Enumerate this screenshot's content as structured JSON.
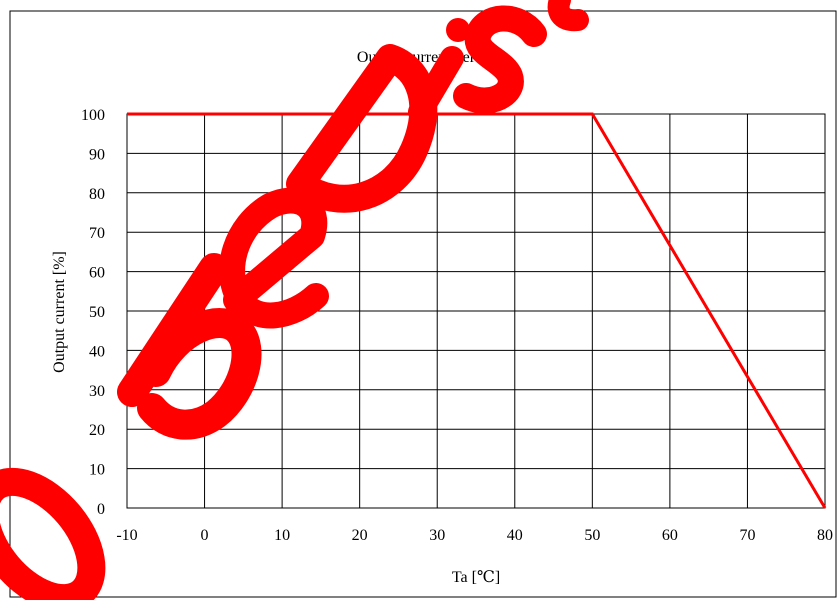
{
  "chart_data": {
    "type": "line",
    "title": "Output current derating",
    "xlabel": "Ta [℃]",
    "ylabel": "Output current [%]",
    "xlim": [
      -10,
      80
    ],
    "ylim": [
      0,
      100
    ],
    "xticks": [
      -10,
      0,
      10,
      20,
      30,
      40,
      50,
      60,
      70,
      80
    ],
    "yticks": [
      0,
      10,
      20,
      30,
      40,
      50,
      60,
      70,
      80,
      90,
      100
    ],
    "grid": true,
    "legend": "none",
    "series": [
      {
        "color": "#ff0000",
        "x": [
          -10,
          50,
          80
        ],
        "y": [
          100,
          100,
          0
        ]
      }
    ]
  },
  "watermark": {
    "text": "To be Discontinued",
    "color": "#ff0000"
  }
}
